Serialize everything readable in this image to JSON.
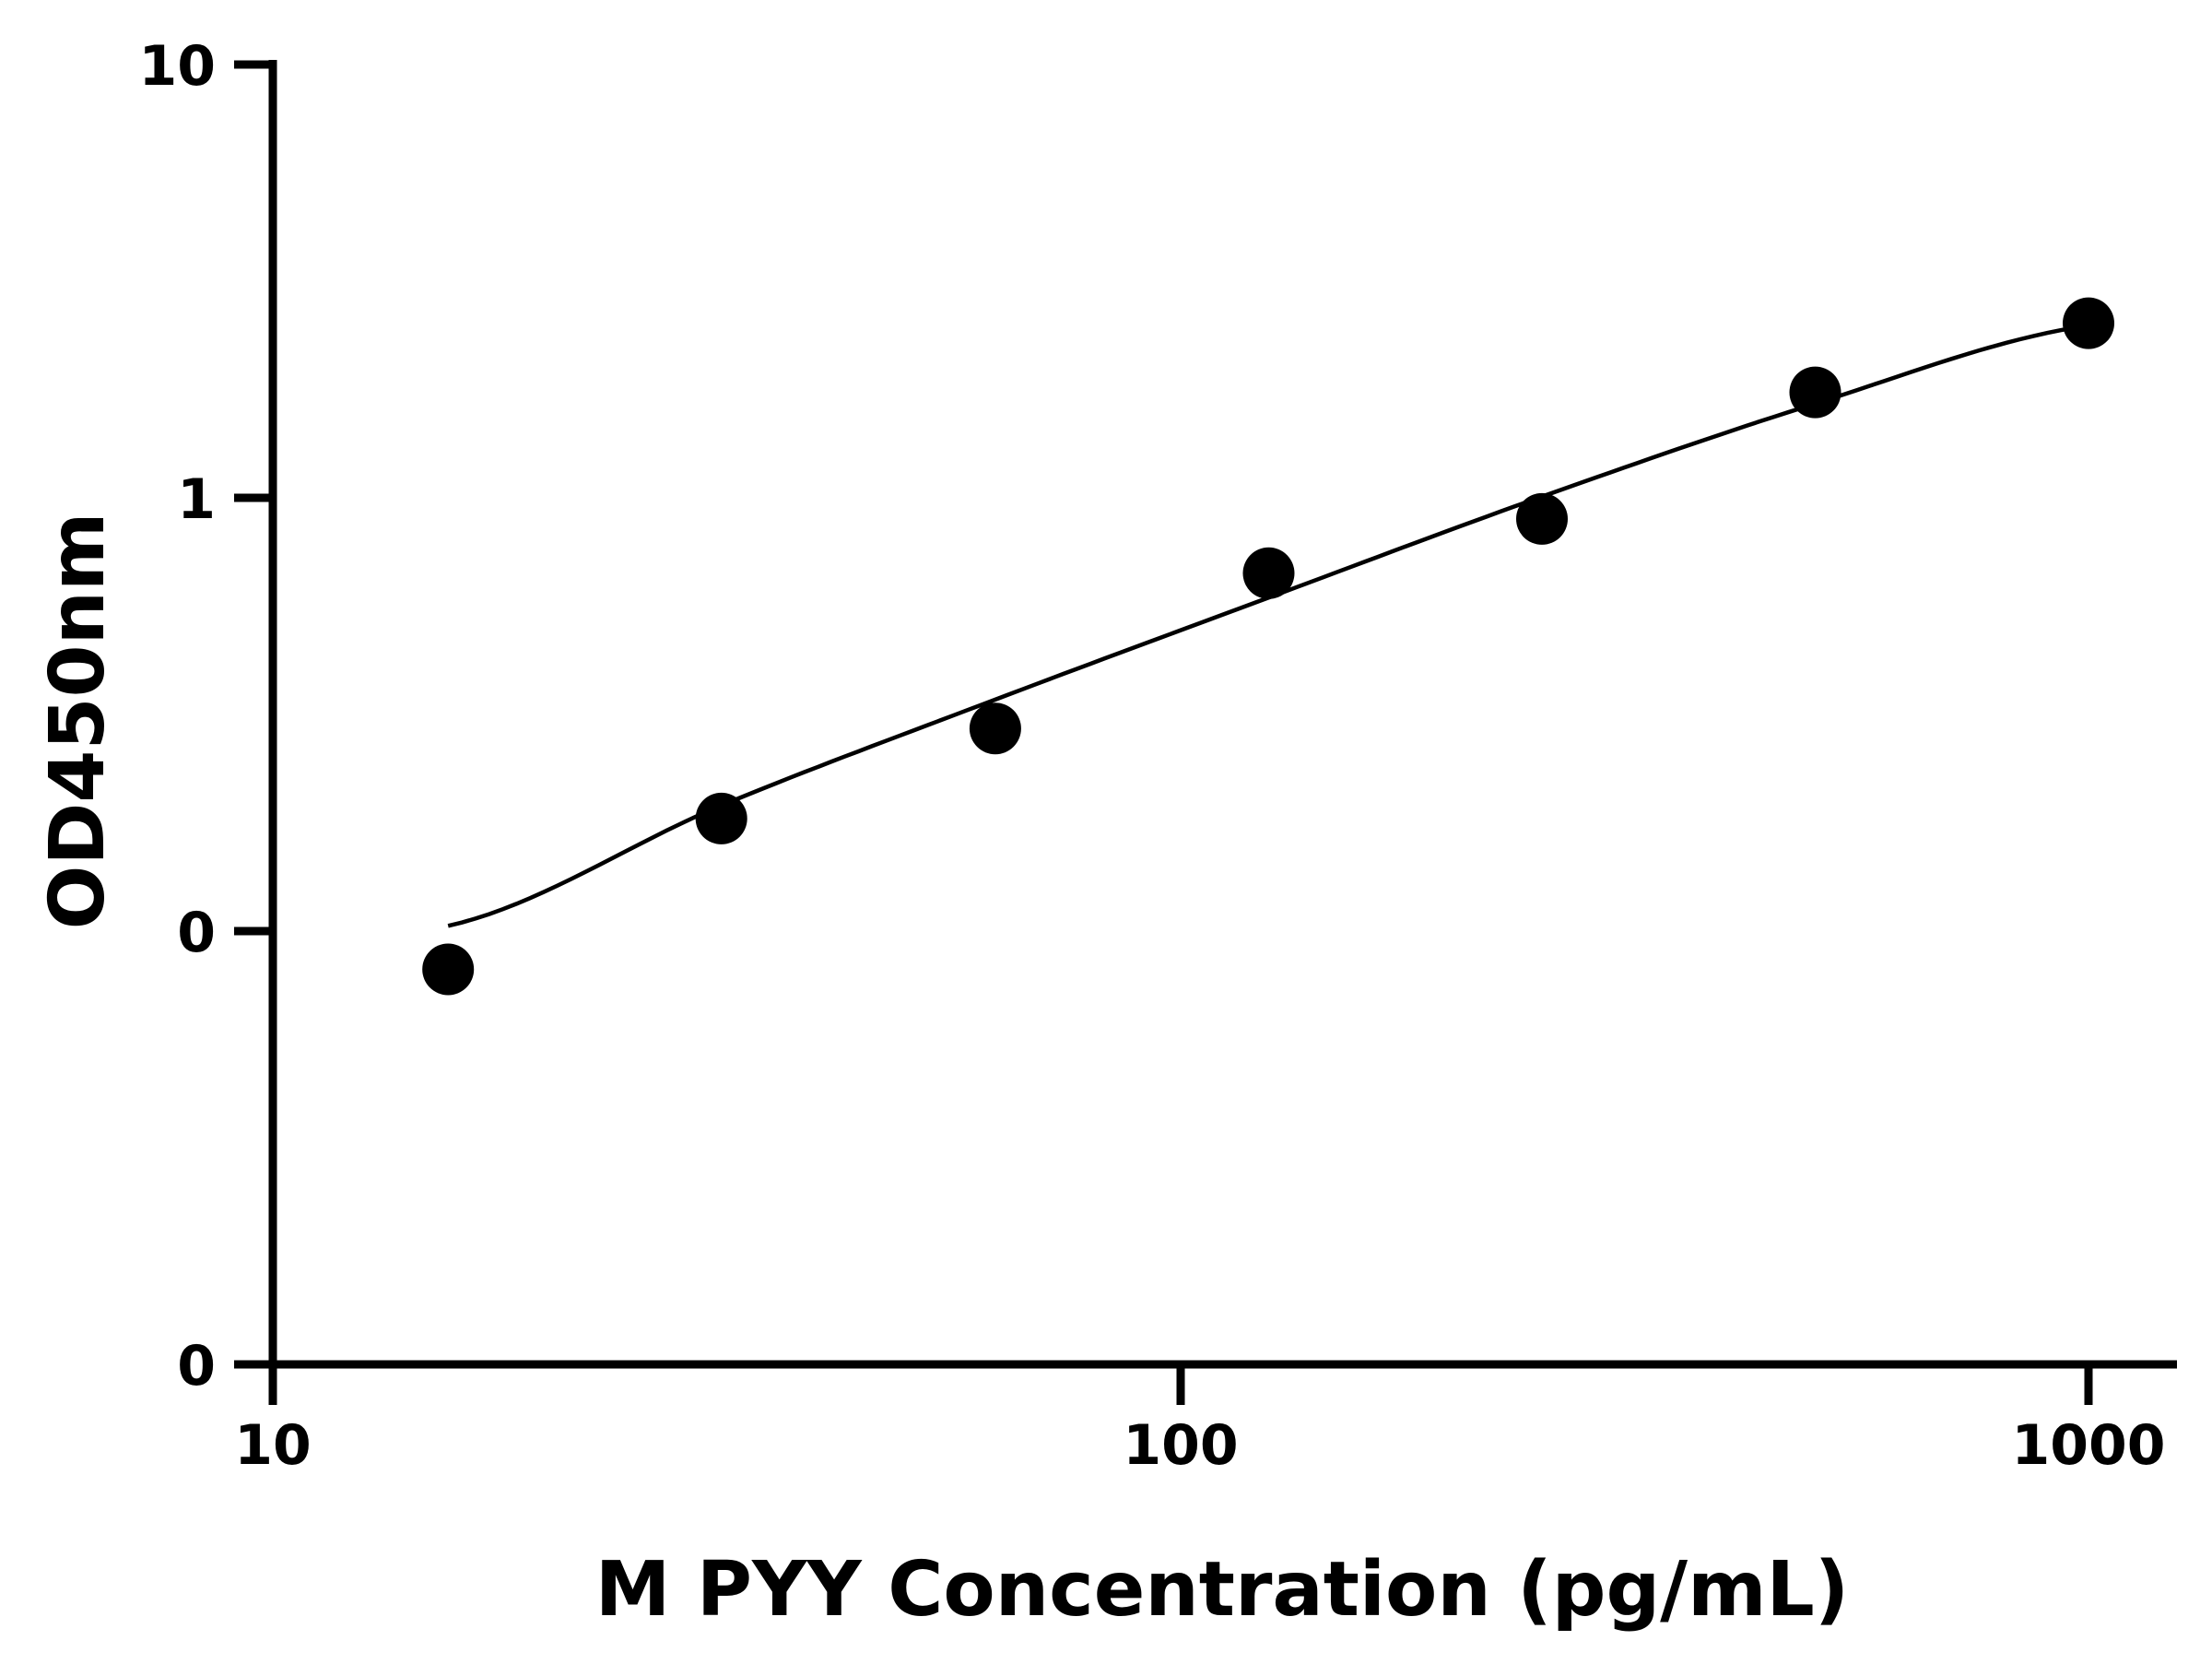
{
  "chart_data": {
    "type": "scatter",
    "xlabel": "M PYY Concentration (pg/mL)",
    "ylabel": "OD450nm",
    "x_scale": "log",
    "xlim": [
      10,
      1150
    ],
    "x_ticks": [
      {
        "value": 10,
        "label": "10"
      },
      {
        "value": 100,
        "label": "100"
      },
      {
        "value": 1000,
        "label": "1000"
      }
    ],
    "y_ticks": [
      {
        "label": "0"
      },
      {
        "label": "0"
      },
      {
        "label": "1"
      },
      {
        "label": "10"
      }
    ],
    "y_scale_note": "y tick labels are printed as 0, 0, 1, 10; points read from a log10 axis spanning 0.01 to 10",
    "ylim": [
      0.01,
      10
    ],
    "grid": false,
    "series": [
      {
        "points": [
          {
            "x": 15.6,
            "y": 0.081
          },
          {
            "x": 31.2,
            "y": 0.18
          },
          {
            "x": 62.5,
            "y": 0.29
          },
          {
            "x": 125,
            "y": 0.66
          },
          {
            "x": 250,
            "y": 0.88
          },
          {
            "x": 500,
            "y": 1.72
          },
          {
            "x": 1000,
            "y": 2.48
          }
        ],
        "marker_color": "#000000"
      }
    ],
    "fit_curve": {
      "type": "4PL",
      "color": "#000000",
      "x_from": 15.6,
      "x_to": 1000,
      "points": [
        {
          "x": 15.6,
          "y": 0.102
        },
        {
          "x": 31.2,
          "y": 0.193
        },
        {
          "x": 62.5,
          "y": 0.338
        },
        {
          "x": 125,
          "y": 0.58
        },
        {
          "x": 250,
          "y": 0.99
        },
        {
          "x": 500,
          "y": 1.62
        },
        {
          "x": 1000,
          "y": 2.45
        }
      ]
    }
  }
}
